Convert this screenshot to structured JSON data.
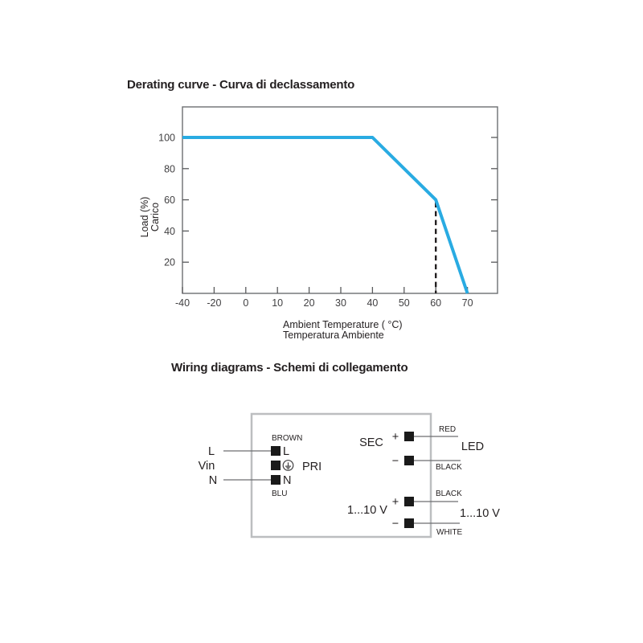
{
  "derating": {
    "title": "Derating curve - Curva di declassamento",
    "chart_data": {
      "type": "line",
      "x_ticks": [
        -40,
        -20,
        0,
        10,
        20,
        30,
        40,
        50,
        60,
        70
      ],
      "y_ticks": [
        100,
        80,
        60,
        40,
        20
      ],
      "series": [
        {
          "name": "load-derating-curve",
          "color": "#29ABE2",
          "points": [
            [
              -40,
              100
            ],
            [
              40,
              100
            ],
            [
              60,
              60
            ],
            [
              70,
              0
            ]
          ]
        }
      ],
      "guide_line": {
        "x": 60,
        "from_y": 0,
        "to_y": 60,
        "style": "dashed",
        "color": "#231F20"
      },
      "xlabel_lines": [
        "Ambient Temperature ( °C)",
        "Temperatura Ambiente"
      ],
      "ylabel_lines": [
        "Load (%)",
        "Carico"
      ],
      "ylim": [
        0,
        115
      ],
      "grid": "off",
      "legend": "none"
    }
  },
  "wiring": {
    "title": "Wiring diagrams - Schemi di collegamento",
    "input": {
      "l_outside": "L",
      "vin": "Vin",
      "n_outside": "N",
      "brown": "BROWN",
      "blu": "BLU",
      "l_terminal": "L",
      "n_terminal": "N",
      "pri": "PRI"
    },
    "sec": {
      "label": "SEC",
      "plus": "+",
      "minus": "−",
      "red": "RED",
      "led": "LED",
      "black": "BLACK"
    },
    "dim": {
      "label": "1...10 V",
      "plus": "+",
      "minus": "−",
      "black": "BLACK",
      "white": "WHITE",
      "right_label": "1...10 V"
    }
  },
  "colors": {
    "curve": "#29ABE2",
    "plot_border": "#6D6E71",
    "tick": "#58595B",
    "tick_label": "#414042",
    "text": "#231F20",
    "wiring_box_border": "#BCBEC0",
    "wire_line": "#6D6E71",
    "terminal_fill": "#1A1A1A"
  }
}
